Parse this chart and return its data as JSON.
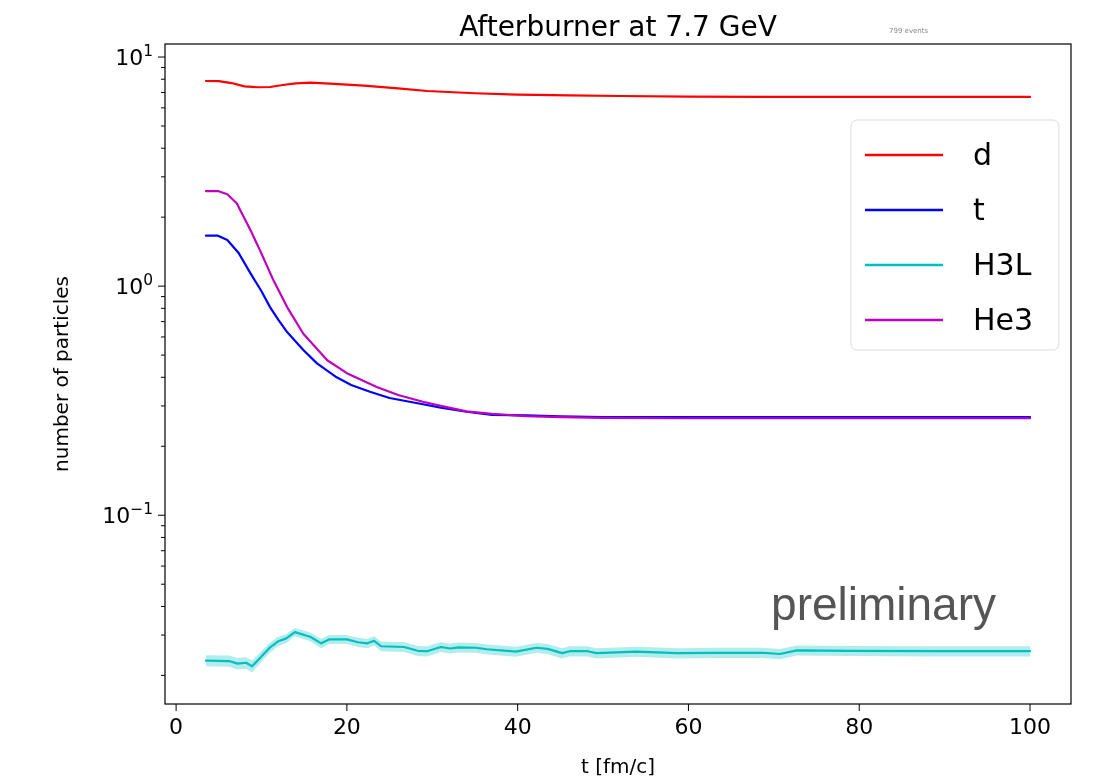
{
  "chart_data": {
    "type": "line",
    "title": "Afterburner at 7.7 GeV",
    "xlabel": "t [fm/c]",
    "ylabel": "number of particles",
    "log": "y",
    "xlim": [
      -1.3,
      104.8
    ],
    "xticks": [
      0,
      20,
      40,
      60,
      80,
      100
    ],
    "ylim": [
      0.015,
      11.4
    ],
    "yticks": [
      {
        "value": 0.02,
        "label": null
      },
      {
        "value": 0.03,
        "label": null
      },
      {
        "value": 0.04,
        "label": null
      },
      {
        "value": 0.05,
        "label": null
      },
      {
        "value": 0.06,
        "label": null
      },
      {
        "value": 0.07,
        "label": null
      },
      {
        "value": 0.08,
        "label": null
      },
      {
        "value": 0.09,
        "label": null
      },
      {
        "value": 0.1,
        "label": "10$^{−1}$"
      },
      {
        "value": 0.2,
        "label": null
      },
      {
        "value": 0.3,
        "label": null
      },
      {
        "value": 0.4,
        "label": null
      },
      {
        "value": 0.5,
        "label": null
      },
      {
        "value": 0.6,
        "label": null
      },
      {
        "value": 0.7,
        "label": null
      },
      {
        "value": 0.8,
        "label": null
      },
      {
        "value": 0.9,
        "label": null
      },
      {
        "value": 1,
        "label": "10$^{0}$"
      },
      {
        "value": 2,
        "label": null
      },
      {
        "value": 3,
        "label": null
      },
      {
        "value": 4,
        "label": null
      },
      {
        "value": 5,
        "label": null
      },
      {
        "value": 6,
        "label": null
      },
      {
        "value": 7,
        "label": null
      },
      {
        "value": 8,
        "label": null
      },
      {
        "value": 9,
        "label": null
      },
      {
        "value": 10,
        "label": "10$^{1}$"
      }
    ],
    "legend": "top right",
    "annotations": [
      "preliminary",
      "799 events"
    ],
    "series": [
      {
        "name": "d",
        "color": "#ff0000",
        "x": [
          3.5,
          5,
          6.5,
          8,
          9.6,
          11,
          12.5,
          14,
          15.7,
          18,
          22,
          26,
          29.4,
          35,
          40,
          46,
          52,
          60,
          70,
          80,
          90,
          100
        ],
        "values": [
          7.86,
          7.85,
          7.7,
          7.45,
          7.38,
          7.4,
          7.55,
          7.68,
          7.73,
          7.65,
          7.5,
          7.3,
          7.11,
          6.95,
          6.85,
          6.8,
          6.76,
          6.72,
          6.7,
          6.7,
          6.7,
          6.7
        ]
      },
      {
        "name": "t",
        "color": "#0000ff",
        "x": [
          3.5,
          4.9,
          6,
          7.3,
          8.7,
          10,
          11,
          12,
          13,
          14.9,
          16.5,
          18.8,
          20.5,
          22.7,
          25,
          28.9,
          31,
          34,
          37,
          41,
          45,
          50,
          60,
          70,
          80,
          90,
          100
        ],
        "values": [
          1.66,
          1.66,
          1.59,
          1.4,
          1.14,
          0.95,
          0.81,
          0.71,
          0.63,
          0.526,
          0.46,
          0.4,
          0.37,
          0.346,
          0.325,
          0.305,
          0.295,
          0.283,
          0.274,
          0.273,
          0.27,
          0.268,
          0.268,
          0.268,
          0.268,
          0.268,
          0.268
        ]
      },
      {
        "name": "H3L",
        "color": "#00bfbf",
        "x": [
          3.5,
          6.2,
          7.2,
          8.2,
          8.9,
          10.9,
          11.9,
          12.9,
          13.9,
          15.7,
          17,
          17.9,
          20,
          21.3,
          22.4,
          23.2,
          24,
          26.7,
          28.3,
          29.4,
          31,
          32.1,
          33.1,
          35.1,
          36.4,
          39.8,
          42.2,
          43.5,
          45.2,
          46.1,
          48.2,
          49.2,
          53.9,
          58.7,
          63,
          68.7,
          70.7,
          72.7,
          78.8,
          88.9,
          100
        ],
        "values": [
          0.0232,
          0.0231,
          0.0225,
          0.0227,
          0.0219,
          0.0263,
          0.0281,
          0.029,
          0.0309,
          0.0295,
          0.0276,
          0.0287,
          0.0287,
          0.0279,
          0.0276,
          0.0283,
          0.0268,
          0.0266,
          0.0256,
          0.0255,
          0.0266,
          0.0262,
          0.0265,
          0.0264,
          0.026,
          0.0254,
          0.0264,
          0.0261,
          0.025,
          0.0255,
          0.0255,
          0.025,
          0.0254,
          0.025,
          0.0251,
          0.0251,
          0.0248,
          0.0257,
          0.0256,
          0.0255,
          0.0255
        ],
        "lower": [
          0.0219,
          0.0218,
          0.0212,
          0.0214,
          0.0206,
          0.025,
          0.0268,
          0.0277,
          0.0296,
          0.0282,
          0.0263,
          0.0274,
          0.0274,
          0.0266,
          0.0263,
          0.027,
          0.0255,
          0.0253,
          0.0243,
          0.0242,
          0.0253,
          0.0249,
          0.0252,
          0.0251,
          0.0247,
          0.0241,
          0.0251,
          0.0248,
          0.0237,
          0.0242,
          0.0242,
          0.0237,
          0.0241,
          0.0237,
          0.0238,
          0.0238,
          0.0235,
          0.0244,
          0.0243,
          0.0242,
          0.0242
        ],
        "upper": [
          0.0245,
          0.0244,
          0.0238,
          0.024,
          0.0232,
          0.0276,
          0.0294,
          0.0303,
          0.0322,
          0.0308,
          0.0289,
          0.03,
          0.03,
          0.0292,
          0.0289,
          0.0296,
          0.0281,
          0.0279,
          0.0269,
          0.0268,
          0.0279,
          0.0275,
          0.0278,
          0.0277,
          0.0273,
          0.0267,
          0.0277,
          0.0274,
          0.0263,
          0.0268,
          0.0268,
          0.0263,
          0.0267,
          0.0263,
          0.0264,
          0.0264,
          0.0261,
          0.027,
          0.0269,
          0.0268,
          0.0268
        ]
      },
      {
        "name": "He3",
        "color": "#bf00bf",
        "x": [
          3.5,
          4.9,
          6,
          7.1,
          8.7,
          9.8,
          11.4,
          13,
          14.9,
          17.7,
          20,
          23.5,
          26,
          28.9,
          31,
          34,
          37,
          41,
          45,
          50,
          60,
          70,
          80,
          90,
          100
        ],
        "values": [
          2.6,
          2.6,
          2.52,
          2.3,
          1.76,
          1.44,
          1.06,
          0.81,
          0.62,
          0.475,
          0.417,
          0.363,
          0.335,
          0.313,
          0.3,
          0.284,
          0.277,
          0.271,
          0.268,
          0.266,
          0.265,
          0.265,
          0.265,
          0.265,
          0.265
        ]
      }
    ]
  }
}
